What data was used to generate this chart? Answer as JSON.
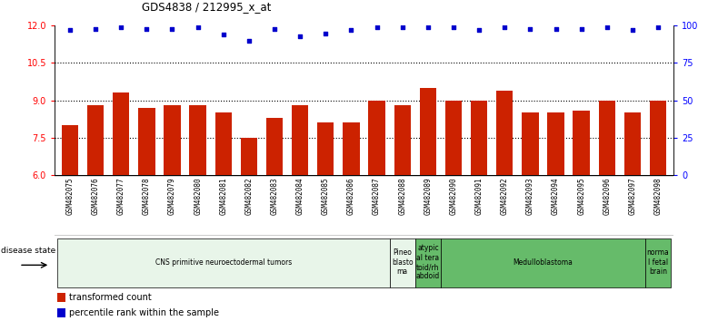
{
  "title": "GDS4838 / 212995_x_at",
  "samples": [
    "GSM482075",
    "GSM482076",
    "GSM482077",
    "GSM482078",
    "GSM482079",
    "GSM482080",
    "GSM482081",
    "GSM482082",
    "GSM482083",
    "GSM482084",
    "GSM482085",
    "GSM482086",
    "GSM482087",
    "GSM482088",
    "GSM482089",
    "GSM482090",
    "GSM482091",
    "GSM482092",
    "GSM482093",
    "GSM482094",
    "GSM482095",
    "GSM482096",
    "GSM482097",
    "GSM482098"
  ],
  "bar_values": [
    8.0,
    8.8,
    9.3,
    8.7,
    8.8,
    8.8,
    8.5,
    7.5,
    8.3,
    8.8,
    8.1,
    8.1,
    9.0,
    8.8,
    9.5,
    9.0,
    9.0,
    9.4,
    8.5,
    8.5,
    8.6,
    9.0,
    8.5,
    9.0
  ],
  "percentile_values": [
    97,
    98,
    99,
    98,
    98,
    99,
    94,
    90,
    98,
    93,
    95,
    97,
    99,
    99,
    99,
    99,
    97,
    99,
    98,
    98,
    98,
    99,
    97,
    99
  ],
  "bar_color": "#cc2200",
  "dot_color": "#0000cc",
  "ylim_left": [
    6,
    12
  ],
  "ylim_right": [
    0,
    100
  ],
  "yticks_left": [
    6,
    7.5,
    9,
    10.5,
    12
  ],
  "yticks_right": [
    0,
    25,
    50,
    75,
    100
  ],
  "hlines": [
    7.5,
    9.0,
    10.5
  ],
  "groups": [
    {
      "label": "CNS primitive neuroectodermal tumors",
      "start": 0,
      "end": 13,
      "color": "#e8f5e9"
    },
    {
      "label": "Pineo\nblasto\nma",
      "start": 13,
      "end": 14,
      "color": "#e8f5e9"
    },
    {
      "label": "atypic\nal tera\ntoid/rh\nabdoid",
      "start": 14,
      "end": 15,
      "color": "#66bb6a"
    },
    {
      "label": "Medulloblastoma",
      "start": 15,
      "end": 23,
      "color": "#66bb6a"
    },
    {
      "label": "norma\nl fetal\nbrain",
      "start": 23,
      "end": 24,
      "color": "#66bb6a"
    }
  ],
  "disease_state_label": "disease state",
  "legend_bar_label": "transformed count",
  "legend_dot_label": "percentile rank within the sample",
  "background_color": "#ffffff",
  "tick_area_color": "#c8c8c8",
  "ybaseline": 6
}
